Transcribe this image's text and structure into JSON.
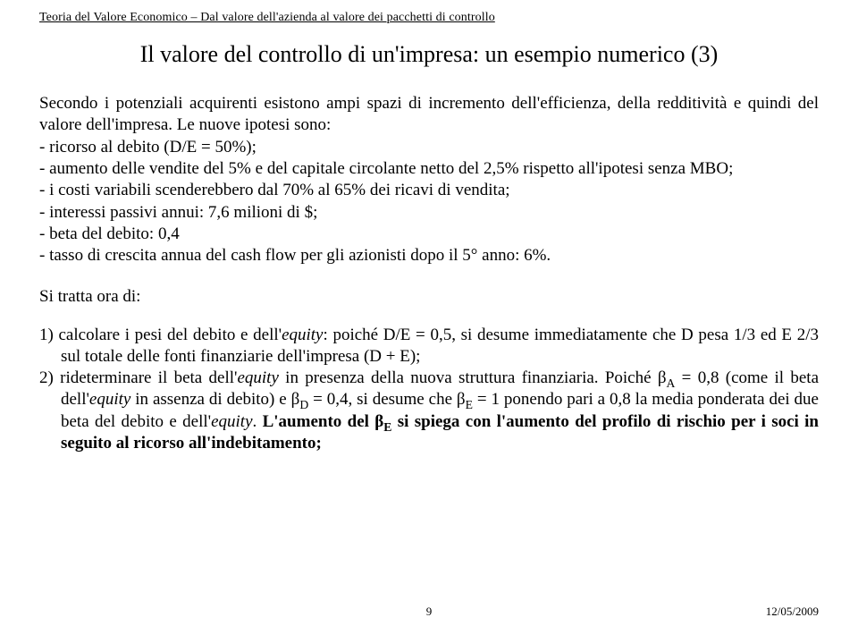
{
  "header": {
    "running": "Teoria del Valore Economico – Dal valore dell'azienda al valore dei pacchetti di controllo"
  },
  "title": "Il valore del controllo di un'impresa: un esempio numerico (3)",
  "para1": "Secondo i potenziali acquirenti esistono ampi spazi di incremento dell'efficienza, della redditività e quindi del valore dell'impresa. Le nuove ipotesi sono:",
  "bullets": [
    "- ricorso al debito (D/E = 50%);",
    "- aumento delle vendite del 5% e del capitale circolante netto del 2,5% rispetto all'ipotesi senza MBO;",
    "- i costi variabili scenderebbero dal 70% al 65% dei ricavi di vendita;",
    "- interessi passivi annui: 7,6 milioni di $;",
    "- beta del debito: 0,4",
    "- tasso di crescita annua del cash flow per gli azionisti dopo il 5° anno: 6%."
  ],
  "section_label": "Si tratta ora di:",
  "num_items": {
    "item1_pre": "1) calcolare i pesi del debito e dell'",
    "item1_eq": "equity",
    "item1_post": ": poiché D/E = 0,5, si desume immediatamente che D pesa 1/3 ed E 2/3 sul totale delle fonti finanziarie dell'impresa (D + E);",
    "item2_pre": "2) rideterminare il beta dell'",
    "item2_eq1": "equity",
    "item2_mid1": " in presenza della nuova struttura finanziaria. Poiché β",
    "item2_subA": "A",
    "item2_mid2": " = 0,8 (come il beta dell'",
    "item2_eq2": "equity",
    "item2_mid3": " in assenza di debito) e β",
    "item2_subD": "D",
    "item2_mid4": " = 0,4, si desume che β",
    "item2_subE": "E",
    "item2_mid5": " = 1 ponendo pari a 0,8 la media ponderata dei due beta del debito e dell'",
    "item2_eq3": "equity",
    "item2_mid6": ". ",
    "item2_bold1": "L'aumento del β",
    "item2_bold_subE": "E",
    "item2_bold2": " si spiega con l'aumento del profilo di rischio per i soci in seguito al ricorso all'indebitamento;"
  },
  "footer": {
    "page": "9",
    "date": "12/05/2009"
  }
}
